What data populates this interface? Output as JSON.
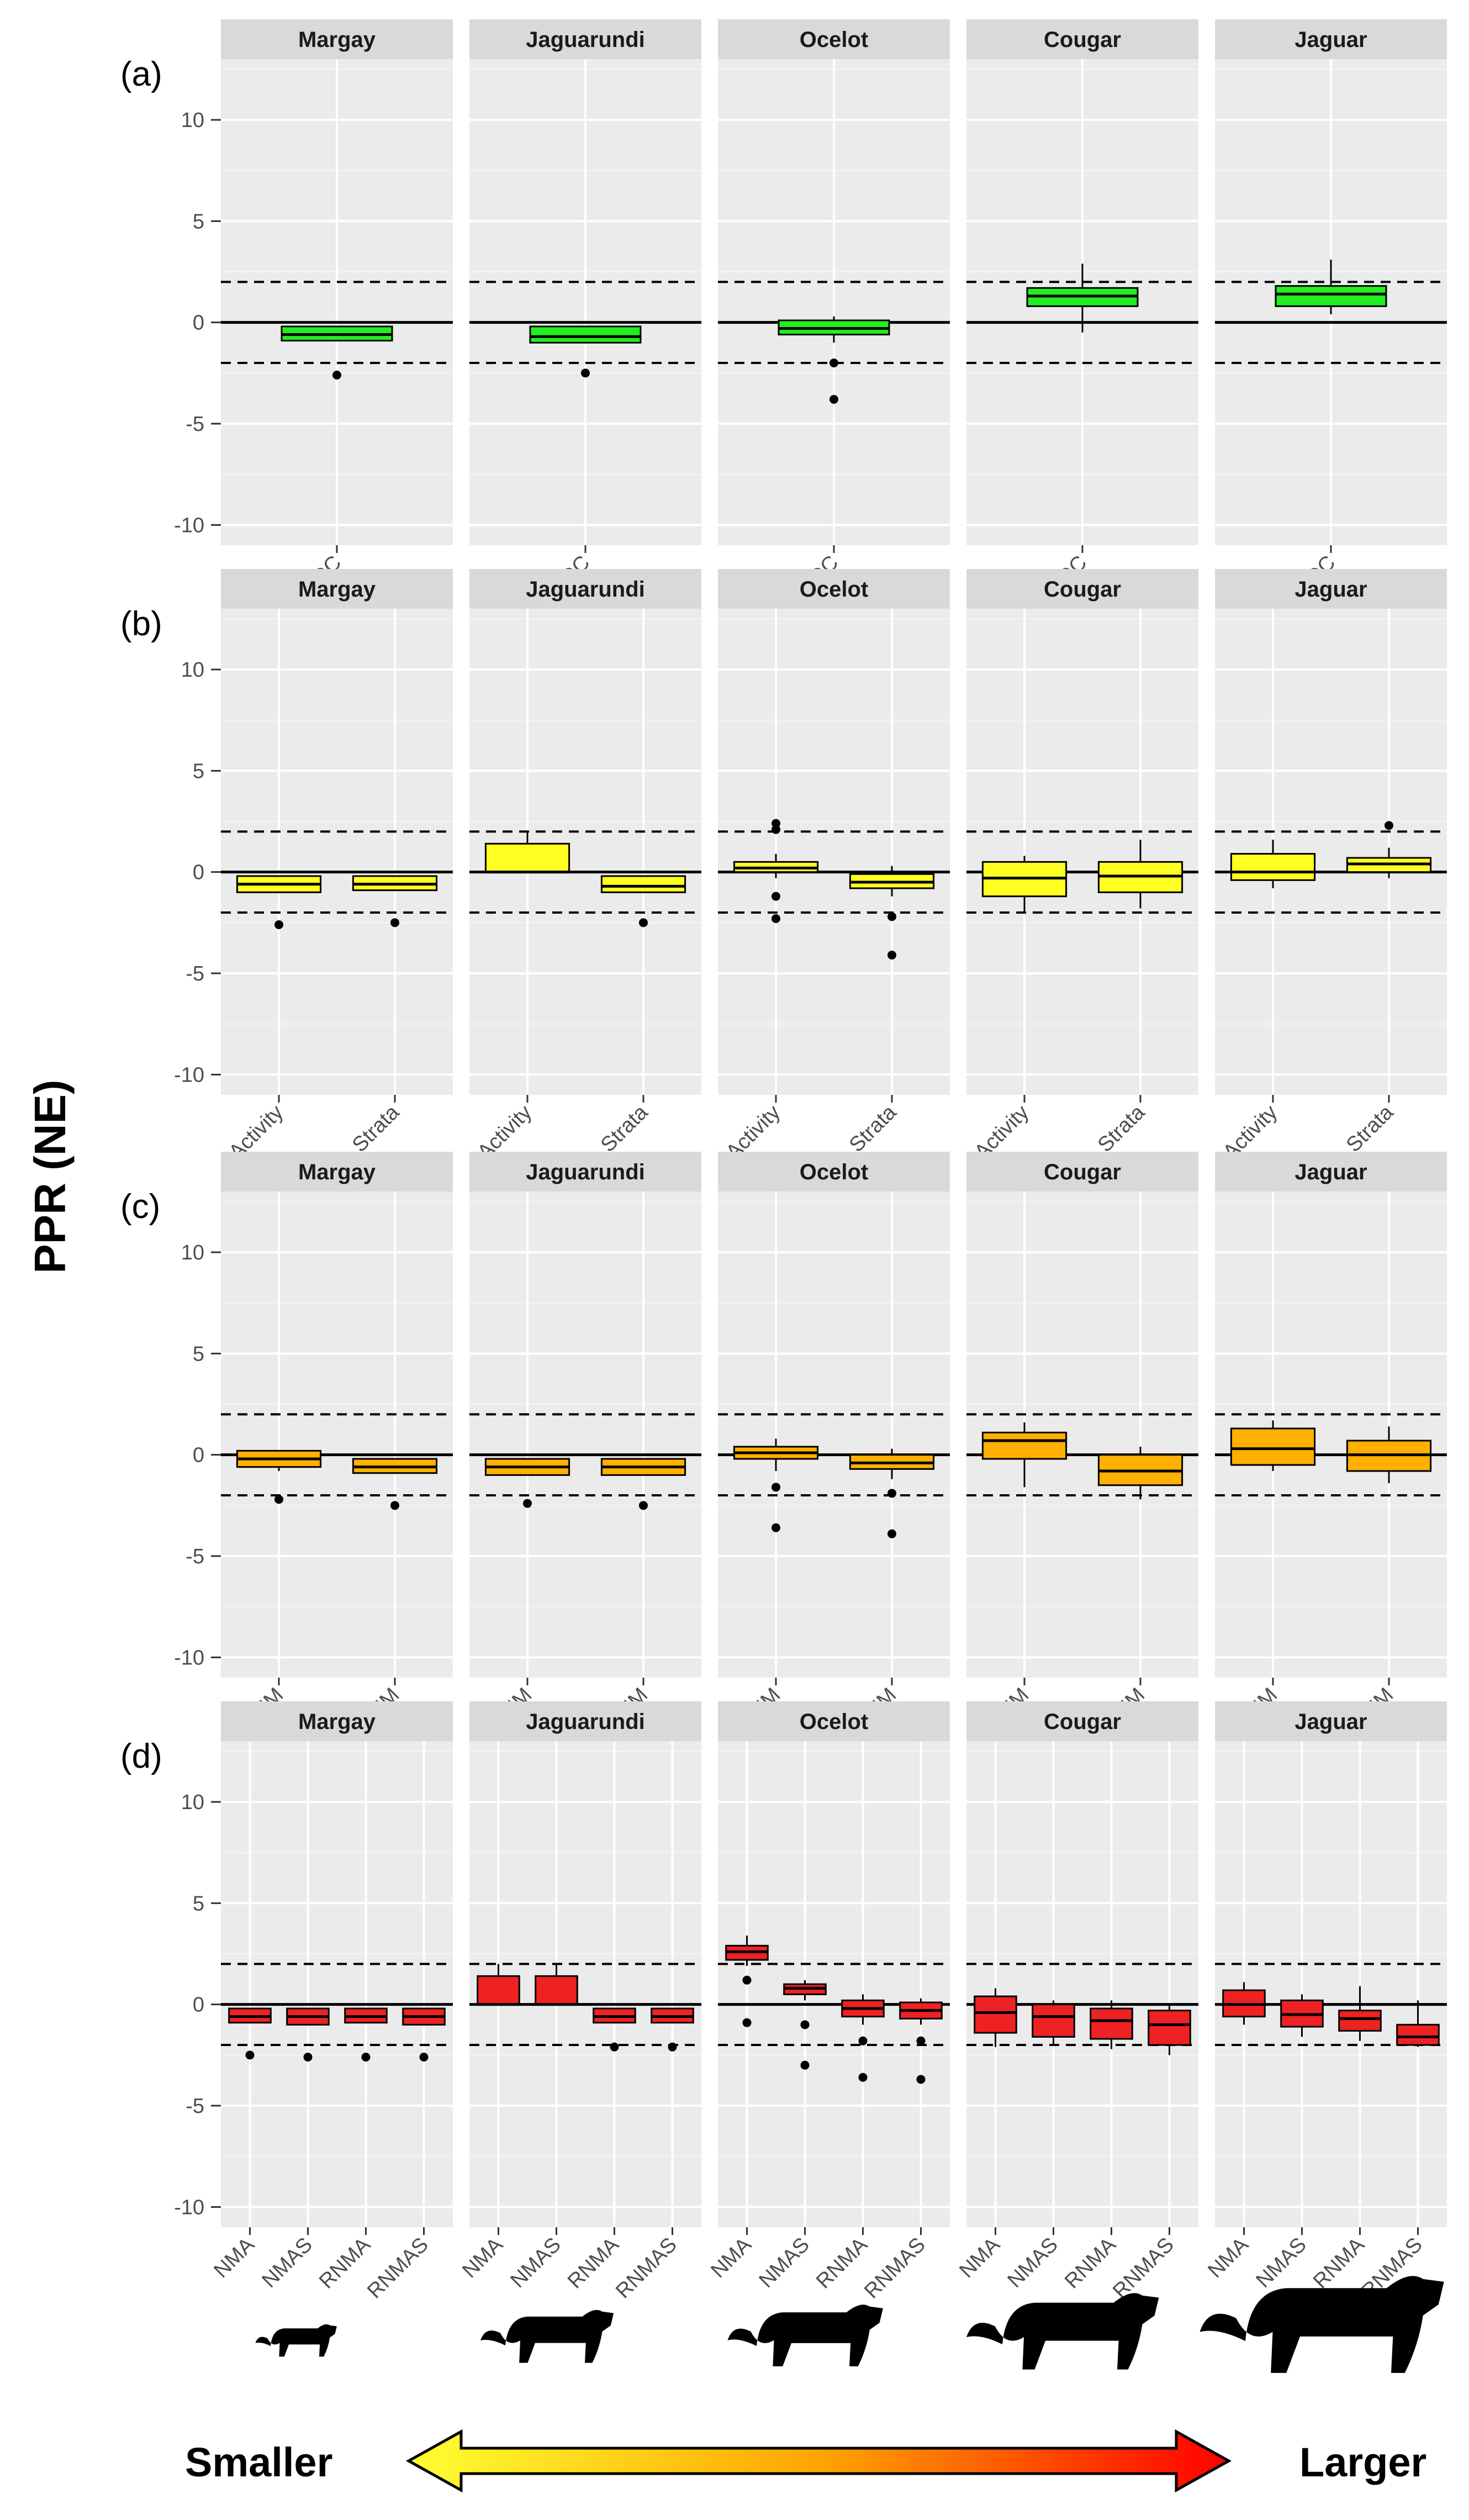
{
  "y_axis_label": "PPR (NE)",
  "size_legend": {
    "smaller_label": "Smaller",
    "larger_label": "Larger",
    "gradient_colors": [
      "#ffff33",
      "#ffa500",
      "#ff0000"
    ],
    "silhouettes": [
      "Margay",
      "Jaguarundi",
      "Ocelot",
      "Cougar",
      "Jaguar"
    ]
  },
  "chart_data": [
    {
      "type": "boxplot",
      "panel_label": "(a)",
      "fill_color": "#22ee22",
      "ylim": [
        -11,
        13
      ],
      "yticks": [
        -10,
        -5,
        0,
        5,
        10
      ],
      "reference_lines": {
        "solid": 0,
        "dashed": [
          -2,
          2
        ]
      },
      "facets": [
        "Margay",
        "Jaguarundi",
        "Ocelot",
        "Cougar",
        "Jaguar"
      ],
      "categories": [
        "COC"
      ],
      "boxes": {
        "Margay": [
          {
            "q1": -0.9,
            "median": -0.6,
            "q3": -0.2,
            "whisker_low": -0.9,
            "whisker_high": -0.2,
            "outliers": [
              -2.6
            ]
          }
        ],
        "Jaguarundi": [
          {
            "q1": -1.0,
            "median": -0.7,
            "q3": -0.2,
            "whisker_low": -1.0,
            "whisker_high": -0.2,
            "outliers": [
              -2.5
            ]
          }
        ],
        "Ocelot": [
          {
            "q1": -0.6,
            "median": -0.3,
            "q3": 0.1,
            "whisker_low": -1.0,
            "whisker_high": 0.3,
            "outliers": [
              -2.0,
              -3.8
            ]
          }
        ],
        "Cougar": [
          {
            "q1": 0.8,
            "median": 1.3,
            "q3": 1.7,
            "whisker_low": -0.5,
            "whisker_high": 2.9,
            "outliers": []
          }
        ],
        "Jaguar": [
          {
            "q1": 0.8,
            "median": 1.4,
            "q3": 1.8,
            "whisker_low": 0.4,
            "whisker_high": 3.1,
            "outliers": []
          }
        ]
      }
    },
    {
      "type": "boxplot",
      "panel_label": "(b)",
      "fill_color": "#ffff22",
      "ylim": [
        -11,
        13
      ],
      "yticks": [
        -10,
        -5,
        0,
        5,
        10
      ],
      "reference_lines": {
        "solid": 0,
        "dashed": [
          -2,
          2
        ]
      },
      "facets": [
        "Margay",
        "Jaguarundi",
        "Ocelot",
        "Cougar",
        "Jaguar"
      ],
      "categories": [
        "Activity",
        "Strata"
      ],
      "boxes": {
        "Margay": [
          {
            "q1": -1.0,
            "median": -0.6,
            "q3": -0.2,
            "whisker_low": -1.0,
            "whisker_high": -0.2,
            "outliers": [
              -2.6
            ]
          },
          {
            "q1": -0.9,
            "median": -0.6,
            "q3": -0.2,
            "whisker_low": -0.9,
            "whisker_high": -0.2,
            "outliers": [
              -2.5
            ]
          }
        ],
        "Jaguarundi": [
          {
            "q1": 0.0,
            "median": 0.0,
            "q3": 1.4,
            "whisker_low": 0.0,
            "whisker_high": 2.0,
            "outliers": []
          },
          {
            "q1": -1.0,
            "median": -0.7,
            "q3": -0.2,
            "whisker_low": -1.0,
            "whisker_high": -0.2,
            "outliers": [
              -2.5
            ]
          }
        ],
        "Ocelot": [
          {
            "q1": 0.0,
            "median": 0.2,
            "q3": 0.5,
            "whisker_low": -0.3,
            "whisker_high": 0.9,
            "outliers": [
              2.4,
              2.1,
              -1.2,
              -2.3
            ]
          },
          {
            "q1": -0.8,
            "median": -0.5,
            "q3": -0.1,
            "whisker_low": -1.2,
            "whisker_high": 0.3,
            "outliers": [
              -2.2,
              -4.1
            ]
          }
        ],
        "Cougar": [
          {
            "q1": -1.2,
            "median": -0.3,
            "q3": 0.5,
            "whisker_low": -2.0,
            "whisker_high": 0.8,
            "outliers": []
          },
          {
            "q1": -1.0,
            "median": -0.2,
            "q3": 0.5,
            "whisker_low": -1.8,
            "whisker_high": 1.6,
            "outliers": []
          }
        ],
        "Jaguar": [
          {
            "q1": -0.4,
            "median": 0.0,
            "q3": 0.9,
            "whisker_low": -0.8,
            "whisker_high": 1.6,
            "outliers": []
          },
          {
            "q1": 0.0,
            "median": 0.4,
            "q3": 0.7,
            "whisker_low": -0.3,
            "whisker_high": 1.2,
            "outliers": [
              2.3
            ]
          }
        ]
      }
    },
    {
      "type": "boxplot",
      "panel_label": "(c)",
      "fill_color": "#ffb000",
      "ylim": [
        -11,
        13
      ],
      "yticks": [
        -10,
        -5,
        0,
        5,
        10
      ],
      "reference_lines": {
        "solid": 0,
        "dashed": [
          -2,
          2
        ]
      },
      "facets": [
        "Margay",
        "Jaguarundi",
        "Ocelot",
        "Cougar",
        "Jaguar"
      ],
      "categories": [
        "NM",
        "RNM"
      ],
      "boxes": {
        "Margay": [
          {
            "q1": -0.6,
            "median": -0.2,
            "q3": 0.2,
            "whisker_low": -0.8,
            "whisker_high": 0.2,
            "outliers": [
              -2.2
            ]
          },
          {
            "q1": -0.9,
            "median": -0.6,
            "q3": -0.2,
            "whisker_low": -0.9,
            "whisker_high": -0.2,
            "outliers": [
              -2.5
            ]
          }
        ],
        "Jaguarundi": [
          {
            "q1": -1.0,
            "median": -0.6,
            "q3": -0.2,
            "whisker_low": -1.0,
            "whisker_high": -0.2,
            "outliers": [
              -2.4
            ]
          },
          {
            "q1": -1.0,
            "median": -0.6,
            "q3": -0.2,
            "whisker_low": -1.0,
            "whisker_high": -0.2,
            "outliers": [
              -2.5
            ]
          }
        ],
        "Ocelot": [
          {
            "q1": -0.2,
            "median": 0.1,
            "q3": 0.4,
            "whisker_low": -0.8,
            "whisker_high": 0.8,
            "outliers": [
              -1.6,
              -3.6
            ]
          },
          {
            "q1": -0.7,
            "median": -0.4,
            "q3": 0.0,
            "whisker_low": -1.2,
            "whisker_high": 0.3,
            "outliers": [
              -1.9,
              -3.9
            ]
          }
        ],
        "Cougar": [
          {
            "q1": -0.2,
            "median": 0.7,
            "q3": 1.1,
            "whisker_low": -1.6,
            "whisker_high": 1.6,
            "outliers": []
          },
          {
            "q1": -1.5,
            "median": -0.8,
            "q3": 0.0,
            "whisker_low": -2.2,
            "whisker_high": 0.4,
            "outliers": []
          }
        ],
        "Jaguar": [
          {
            "q1": -0.5,
            "median": 0.3,
            "q3": 1.3,
            "whisker_low": -0.8,
            "whisker_high": 1.7,
            "outliers": []
          },
          {
            "q1": -0.8,
            "median": 0.0,
            "q3": 0.7,
            "whisker_low": -1.4,
            "whisker_high": 1.4,
            "outliers": []
          }
        ]
      }
    },
    {
      "type": "boxplot",
      "panel_label": "(d)",
      "fill_color": "#ee2222",
      "ylim": [
        -11,
        13
      ],
      "yticks": [
        -10,
        -5,
        0,
        5,
        10
      ],
      "reference_lines": {
        "solid": 0,
        "dashed": [
          -2,
          2
        ]
      },
      "facets": [
        "Margay",
        "Jaguarundi",
        "Ocelot",
        "Cougar",
        "Jaguar"
      ],
      "categories": [
        "NMA",
        "NMAS",
        "RNMA",
        "RNMAS"
      ],
      "boxes": {
        "Margay": [
          {
            "q1": -0.9,
            "median": -0.6,
            "q3": -0.2,
            "whisker_low": -0.9,
            "whisker_high": -0.2,
            "outliers": [
              -2.5
            ]
          },
          {
            "q1": -1.0,
            "median": -0.6,
            "q3": -0.2,
            "whisker_low": -1.0,
            "whisker_high": -0.2,
            "outliers": [
              -2.6
            ]
          },
          {
            "q1": -0.9,
            "median": -0.6,
            "q3": -0.2,
            "whisker_low": -0.9,
            "whisker_high": -0.2,
            "outliers": [
              -2.6
            ]
          },
          {
            "q1": -1.0,
            "median": -0.6,
            "q3": -0.2,
            "whisker_low": -1.0,
            "whisker_high": -0.2,
            "outliers": [
              -2.6
            ]
          }
        ],
        "Jaguarundi": [
          {
            "q1": 0.0,
            "median": 0.0,
            "q3": 1.4,
            "whisker_low": 0.0,
            "whisker_high": 2.0,
            "outliers": []
          },
          {
            "q1": 0.0,
            "median": 0.0,
            "q3": 1.4,
            "whisker_low": 0.0,
            "whisker_high": 2.0,
            "outliers": []
          },
          {
            "q1": -0.9,
            "median": -0.6,
            "q3": -0.2,
            "whisker_low": -0.9,
            "whisker_high": -0.2,
            "outliers": [
              -2.1
            ]
          },
          {
            "q1": -0.9,
            "median": -0.6,
            "q3": -0.2,
            "whisker_low": -0.9,
            "whisker_high": -0.2,
            "outliers": [
              -2.1
            ]
          }
        ],
        "Ocelot": [
          {
            "q1": 2.2,
            "median": 2.6,
            "q3": 2.9,
            "whisker_low": 1.9,
            "whisker_high": 3.4,
            "outliers": [
              1.2,
              -0.9
            ]
          },
          {
            "q1": 0.5,
            "median": 0.8,
            "q3": 1.0,
            "whisker_low": 0.2,
            "whisker_high": 1.2,
            "outliers": [
              -1.0,
              -3.0
            ]
          },
          {
            "q1": -0.6,
            "median": -0.2,
            "q3": 0.2,
            "whisker_low": -1.0,
            "whisker_high": 0.5,
            "outliers": [
              -1.8,
              -3.6
            ]
          },
          {
            "q1": -0.7,
            "median": -0.3,
            "q3": 0.1,
            "whisker_low": -1.0,
            "whisker_high": 0.3,
            "outliers": [
              -1.8,
              -3.7
            ]
          }
        ],
        "Cougar": [
          {
            "q1": -1.4,
            "median": -0.4,
            "q3": 0.4,
            "whisker_low": -2.1,
            "whisker_high": 0.8,
            "outliers": []
          },
          {
            "q1": -1.6,
            "median": -0.6,
            "q3": 0.0,
            "whisker_low": -2.0,
            "whisker_high": 0.2,
            "outliers": []
          },
          {
            "q1": -1.7,
            "median": -0.8,
            "q3": -0.2,
            "whisker_low": -2.2,
            "whisker_high": 0.2,
            "outliers": []
          },
          {
            "q1": -2.0,
            "median": -1.0,
            "q3": -0.3,
            "whisker_low": -2.5,
            "whisker_high": 0.0,
            "outliers": []
          }
        ],
        "Jaguar": [
          {
            "q1": -0.6,
            "median": 0.0,
            "q3": 0.7,
            "whisker_low": -1.0,
            "whisker_high": 1.1,
            "outliers": []
          },
          {
            "q1": -1.1,
            "median": -0.5,
            "q3": 0.2,
            "whisker_low": -1.6,
            "whisker_high": 0.5,
            "outliers": []
          },
          {
            "q1": -1.3,
            "median": -0.7,
            "q3": -0.3,
            "whisker_low": -1.8,
            "whisker_high": 0.9,
            "outliers": []
          },
          {
            "q1": -2.0,
            "median": -1.6,
            "q3": -1.0,
            "whisker_low": -2.1,
            "whisker_high": 0.2,
            "outliers": []
          }
        ]
      }
    }
  ]
}
